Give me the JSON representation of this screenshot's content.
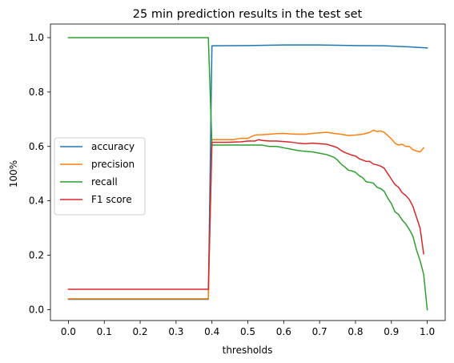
{
  "chart_data": {
    "type": "line",
    "title": "25 min prediction results in the test set",
    "xlabel": "thresholds",
    "ylabel": "100%",
    "xlim": [
      -0.05,
      1.05
    ],
    "ylim": [
      -0.04,
      1.05
    ],
    "xticks": [
      "0.0",
      "0.1",
      "0.2",
      "0.3",
      "0.4",
      "0.5",
      "0.6",
      "0.7",
      "0.8",
      "0.9",
      "1.0"
    ],
    "yticks": [
      "0.0",
      "0.2",
      "0.4",
      "0.6",
      "0.8",
      "1.0"
    ],
    "grid": false,
    "legend_position": "center-left",
    "series": [
      {
        "name": "accuracy",
        "color": "#1f77b4",
        "points": [
          [
            0.0,
            0.038
          ],
          [
            0.39,
            0.038
          ],
          [
            0.4,
            0.97
          ],
          [
            0.5,
            0.971
          ],
          [
            0.6,
            0.973
          ],
          [
            0.7,
            0.973
          ],
          [
            0.8,
            0.971
          ],
          [
            0.88,
            0.97
          ],
          [
            0.95,
            0.966
          ],
          [
            1.0,
            0.962
          ]
        ]
      },
      {
        "name": "precision",
        "color": "#ff7f0e",
        "points": [
          [
            0.0,
            0.04
          ],
          [
            0.39,
            0.04
          ],
          [
            0.4,
            0.625
          ],
          [
            0.44,
            0.625
          ],
          [
            0.46,
            0.625
          ],
          [
            0.48,
            0.63
          ],
          [
            0.5,
            0.63
          ],
          [
            0.52,
            0.642
          ],
          [
            0.54,
            0.643
          ],
          [
            0.56,
            0.645
          ],
          [
            0.58,
            0.647
          ],
          [
            0.6,
            0.648
          ],
          [
            0.62,
            0.646
          ],
          [
            0.64,
            0.645
          ],
          [
            0.66,
            0.645
          ],
          [
            0.68,
            0.648
          ],
          [
            0.7,
            0.65
          ],
          [
            0.72,
            0.652
          ],
          [
            0.74,
            0.648
          ],
          [
            0.76,
            0.645
          ],
          [
            0.78,
            0.64
          ],
          [
            0.8,
            0.642
          ],
          [
            0.82,
            0.645
          ],
          [
            0.84,
            0.652
          ],
          [
            0.85,
            0.66
          ],
          [
            0.86,
            0.655
          ],
          [
            0.87,
            0.657
          ],
          [
            0.88,
            0.652
          ],
          [
            0.89,
            0.64
          ],
          [
            0.9,
            0.628
          ],
          [
            0.91,
            0.612
          ],
          [
            0.92,
            0.605
          ],
          [
            0.93,
            0.608
          ],
          [
            0.94,
            0.6
          ],
          [
            0.95,
            0.6
          ],
          [
            0.96,
            0.588
          ],
          [
            0.97,
            0.583
          ],
          [
            0.98,
            0.58
          ],
          [
            0.99,
            0.595
          ]
        ]
      },
      {
        "name": "recall",
        "color": "#2ca02c",
        "points": [
          [
            0.0,
            1.0
          ],
          [
            0.39,
            1.0
          ],
          [
            0.4,
            0.605
          ],
          [
            0.44,
            0.605
          ],
          [
            0.5,
            0.605
          ],
          [
            0.52,
            0.605
          ],
          [
            0.54,
            0.605
          ],
          [
            0.56,
            0.6
          ],
          [
            0.58,
            0.6
          ],
          [
            0.6,
            0.595
          ],
          [
            0.62,
            0.59
          ],
          [
            0.64,
            0.585
          ],
          [
            0.66,
            0.582
          ],
          [
            0.68,
            0.58
          ],
          [
            0.7,
            0.575
          ],
          [
            0.72,
            0.57
          ],
          [
            0.74,
            0.56
          ],
          [
            0.75,
            0.55
          ],
          [
            0.76,
            0.535
          ],
          [
            0.77,
            0.525
          ],
          [
            0.78,
            0.513
          ],
          [
            0.79,
            0.51
          ],
          [
            0.8,
            0.505
          ],
          [
            0.81,
            0.493
          ],
          [
            0.82,
            0.485
          ],
          [
            0.83,
            0.47
          ],
          [
            0.84,
            0.468
          ],
          [
            0.85,
            0.465
          ],
          [
            0.86,
            0.45
          ],
          [
            0.87,
            0.445
          ],
          [
            0.88,
            0.435
          ],
          [
            0.89,
            0.41
          ],
          [
            0.9,
            0.39
          ],
          [
            0.91,
            0.36
          ],
          [
            0.92,
            0.35
          ],
          [
            0.93,
            0.33
          ],
          [
            0.94,
            0.315
          ],
          [
            0.95,
            0.295
          ],
          [
            0.96,
            0.27
          ],
          [
            0.97,
            0.22
          ],
          [
            0.98,
            0.18
          ],
          [
            0.99,
            0.13
          ],
          [
            1.0,
            0.0
          ]
        ]
      },
      {
        "name": "F1 score",
        "color": "#d62728",
        "points": [
          [
            0.0,
            0.075
          ],
          [
            0.39,
            0.075
          ],
          [
            0.4,
            0.615
          ],
          [
            0.44,
            0.615
          ],
          [
            0.48,
            0.617
          ],
          [
            0.5,
            0.62
          ],
          [
            0.52,
            0.62
          ],
          [
            0.53,
            0.625
          ],
          [
            0.54,
            0.622
          ],
          [
            0.56,
            0.62
          ],
          [
            0.58,
            0.62
          ],
          [
            0.6,
            0.618
          ],
          [
            0.62,
            0.616
          ],
          [
            0.64,
            0.612
          ],
          [
            0.66,
            0.61
          ],
          [
            0.68,
            0.612
          ],
          [
            0.7,
            0.61
          ],
          [
            0.72,
            0.608
          ],
          [
            0.74,
            0.6
          ],
          [
            0.75,
            0.595
          ],
          [
            0.76,
            0.585
          ],
          [
            0.77,
            0.578
          ],
          [
            0.78,
            0.573
          ],
          [
            0.79,
            0.568
          ],
          [
            0.8,
            0.565
          ],
          [
            0.81,
            0.555
          ],
          [
            0.82,
            0.55
          ],
          [
            0.83,
            0.545
          ],
          [
            0.84,
            0.545
          ],
          [
            0.85,
            0.535
          ],
          [
            0.86,
            0.532
          ],
          [
            0.87,
            0.528
          ],
          [
            0.88,
            0.52
          ],
          [
            0.89,
            0.5
          ],
          [
            0.9,
            0.48
          ],
          [
            0.91,
            0.46
          ],
          [
            0.92,
            0.45
          ],
          [
            0.93,
            0.43
          ],
          [
            0.94,
            0.42
          ],
          [
            0.95,
            0.405
          ],
          [
            0.96,
            0.38
          ],
          [
            0.97,
            0.34
          ],
          [
            0.98,
            0.3
          ],
          [
            0.99,
            0.205
          ]
        ]
      }
    ]
  }
}
